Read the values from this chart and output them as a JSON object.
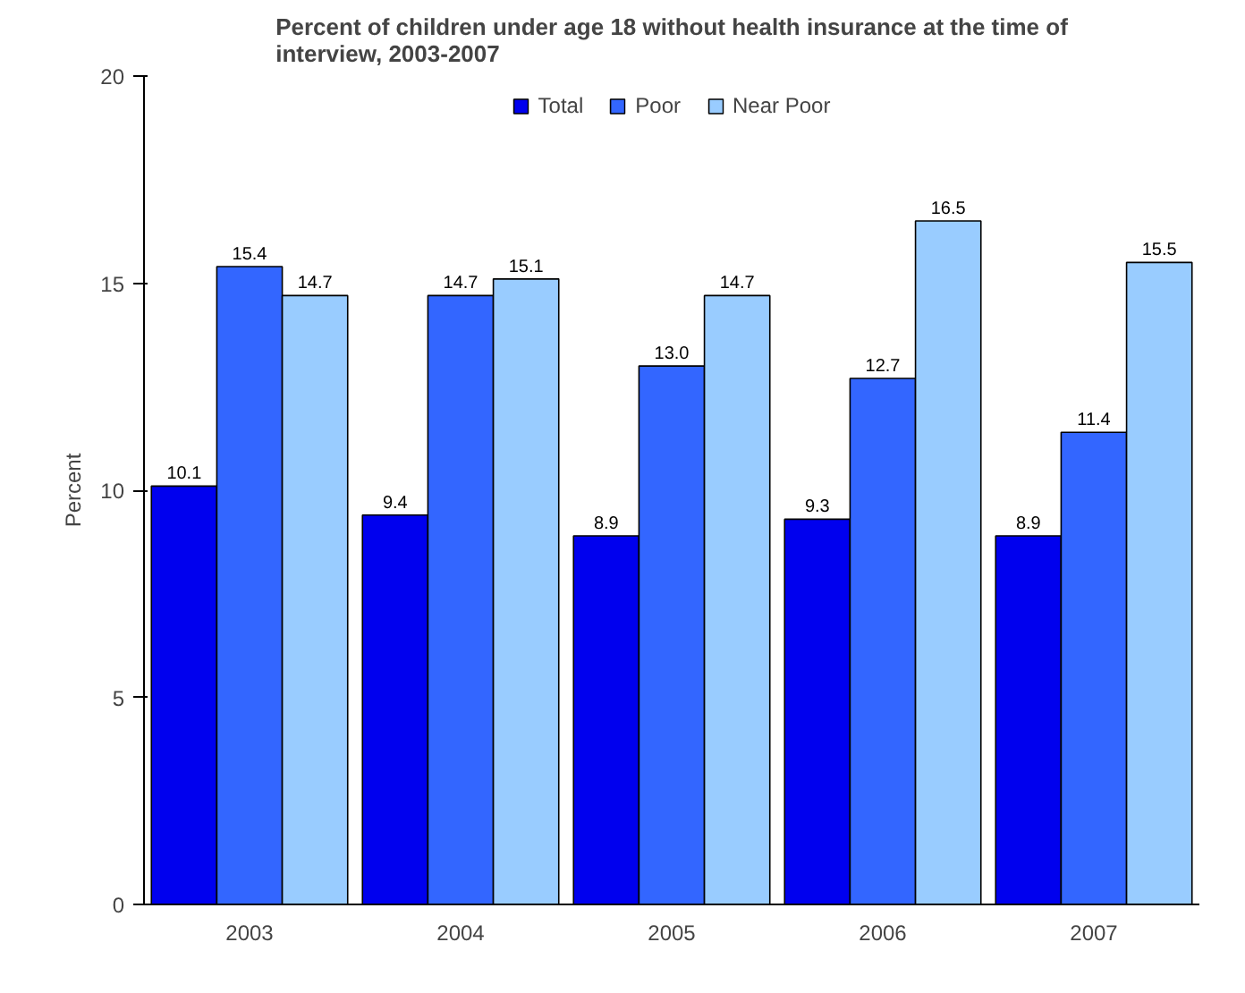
{
  "chart_data": {
    "type": "bar",
    "title": "Percent of children under age 18 without health insurance at the time of interview, 2003-2007",
    "ylabel": "Percent",
    "categories": [
      "2003",
      "2004",
      "2005",
      "2006",
      "2007"
    ],
    "series": [
      {
        "name": "Total",
        "color": "#0000ee",
        "values": [
          10.1,
          9.4,
          8.9,
          9.3,
          8.9
        ],
        "value_labels": [
          "10.1",
          "9.4",
          "8.9",
          "9.3",
          "8.9"
        ]
      },
      {
        "name": "Poor",
        "color": "#3366ff",
        "values": [
          15.4,
          14.7,
          13,
          12.7,
          11.4
        ],
        "value_labels": [
          "15.4",
          "14.7",
          "13.0",
          "12.7",
          "11.4"
        ]
      },
      {
        "name": "Near Poor",
        "color": "#99ccff",
        "values": [
          14.7,
          15.1,
          14.7,
          16.5,
          15.5
        ],
        "value_labels": [
          "14.7",
          "15.1",
          "14.7",
          "16.5",
          "15.5"
        ]
      }
    ],
    "ylim": [
      0,
      20
    ],
    "yticks": [
      0,
      5,
      10,
      15,
      20
    ],
    "legend": "top",
    "grid": false
  }
}
